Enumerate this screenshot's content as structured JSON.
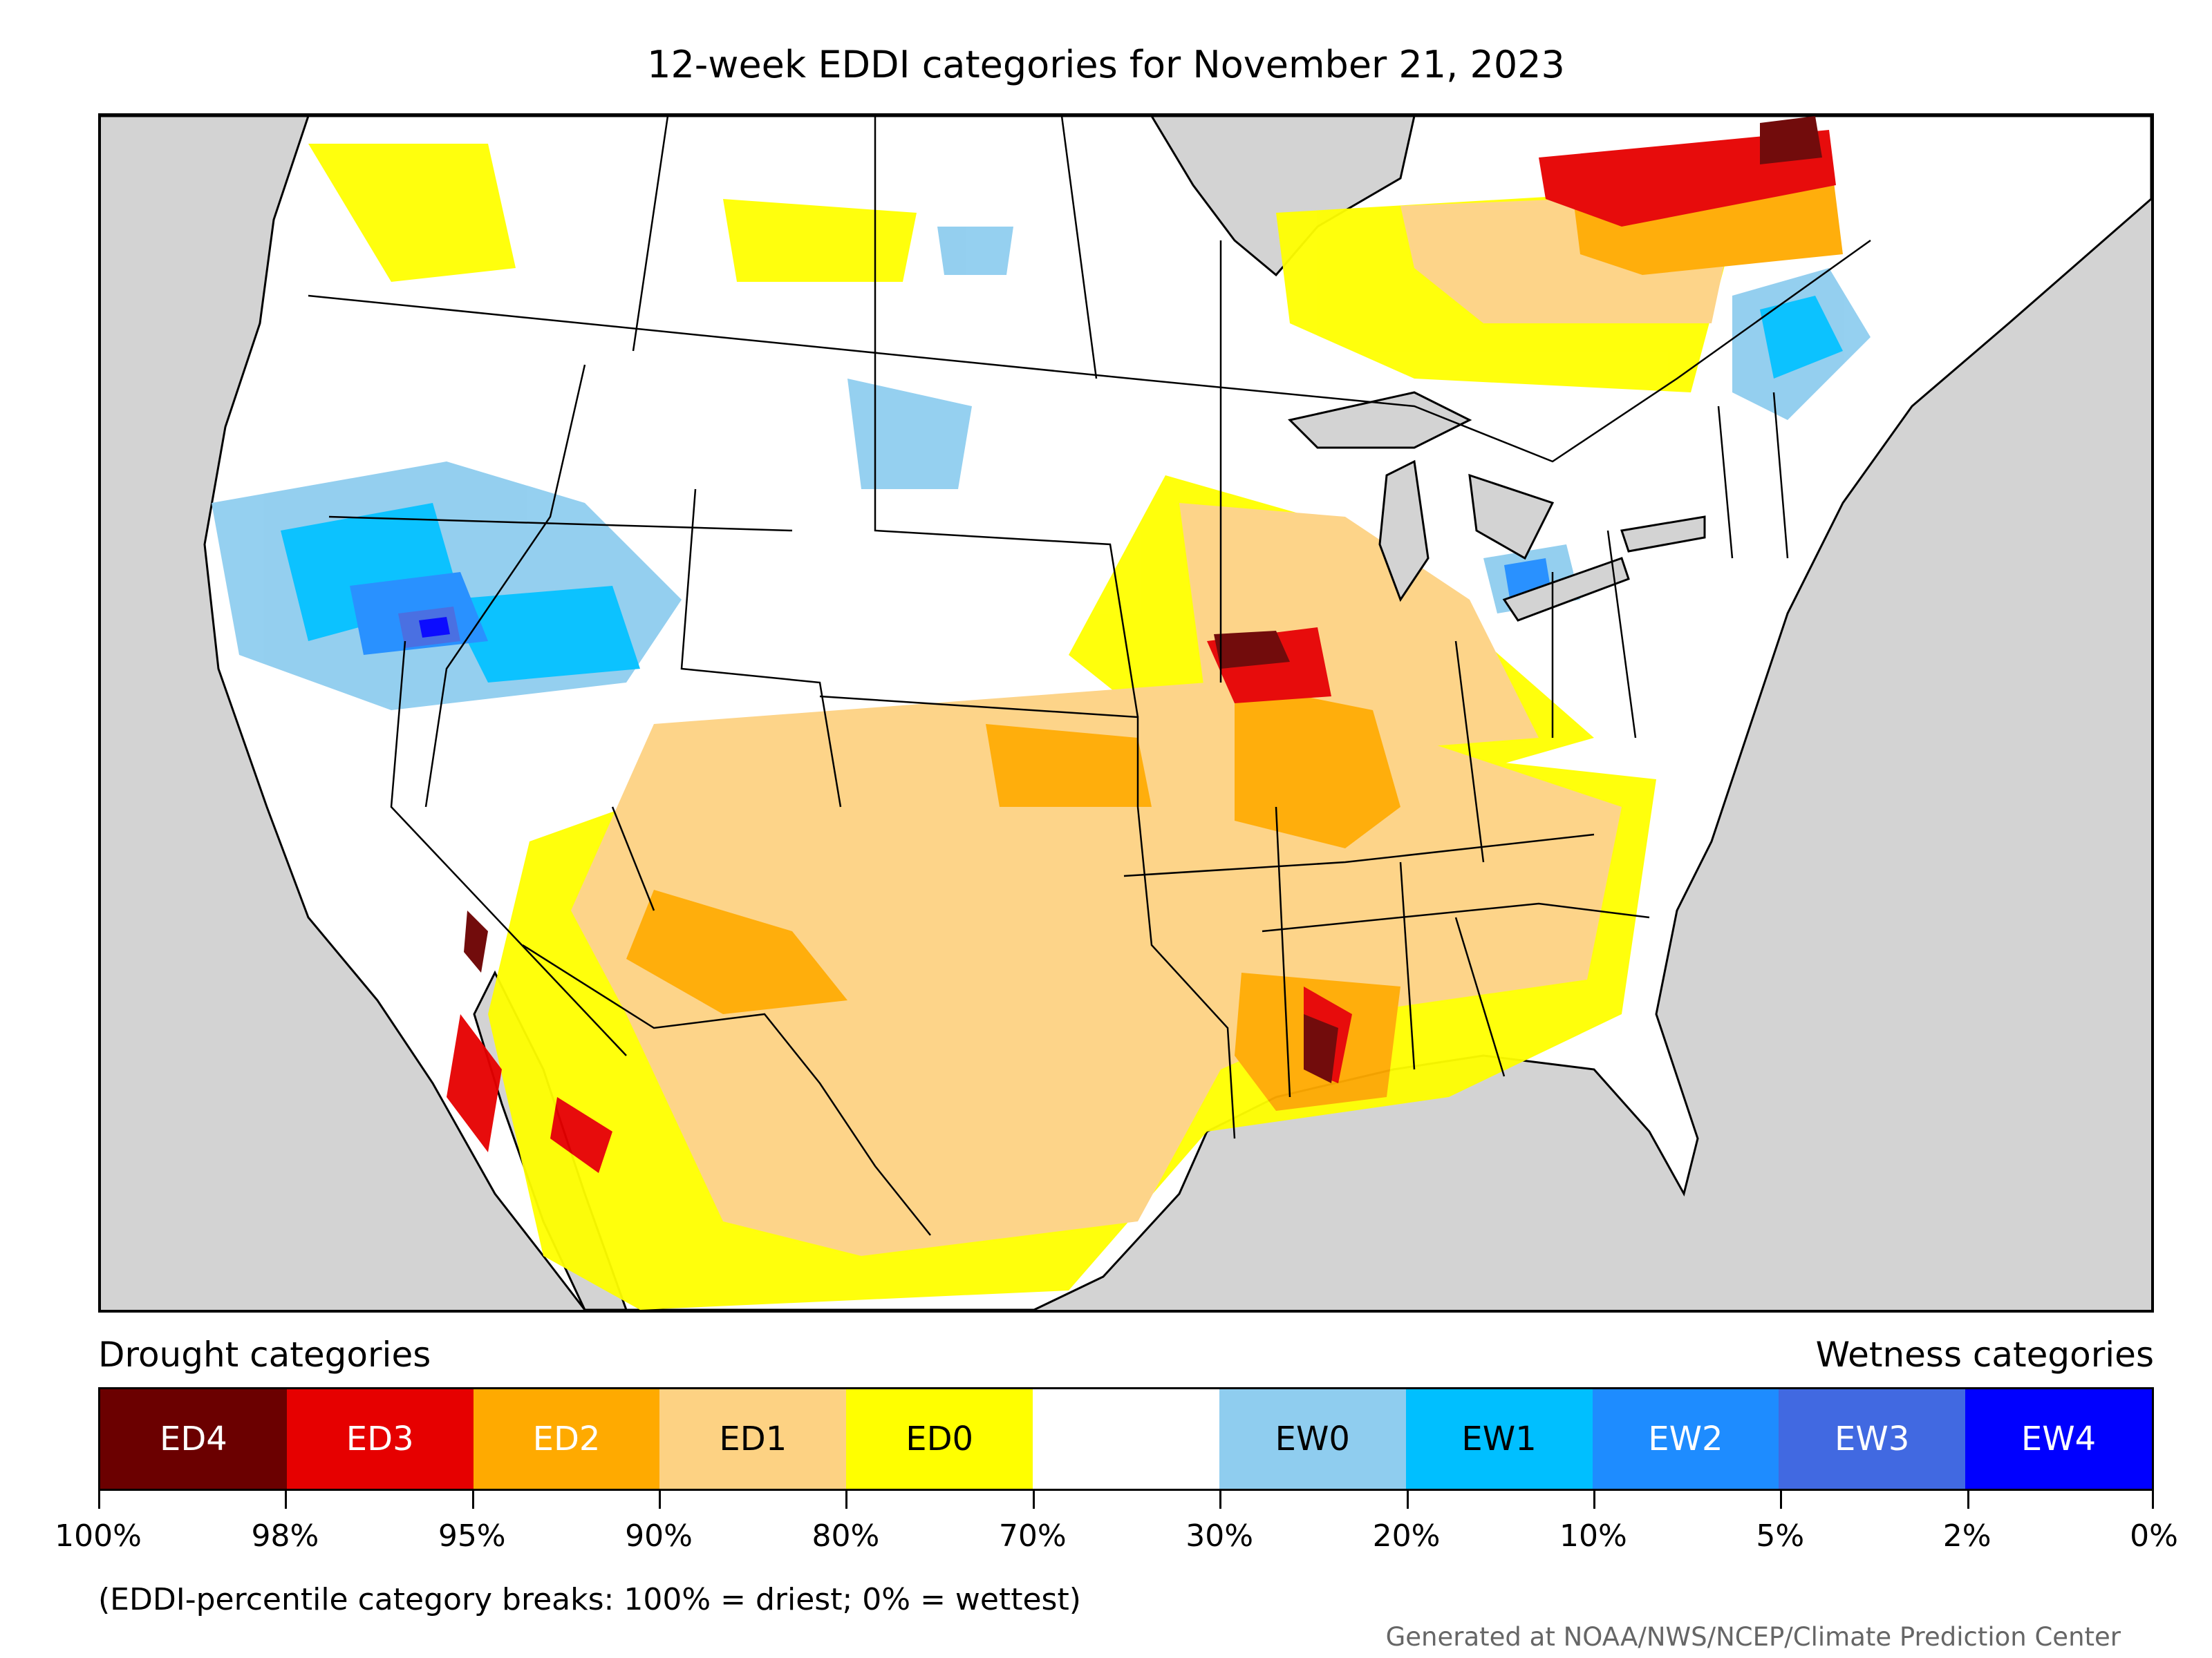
{
  "title": "12-week EDDI categories for November 21, 2023",
  "legend": {
    "drought_heading": "Drought categories",
    "wetness_heading": "Wetness categories",
    "categories": [
      {
        "label": "ED4",
        "color": "#6b0000",
        "text_color": "#ffffff"
      },
      {
        "label": "ED3",
        "color": "#e60000",
        "text_color": "#ffffff"
      },
      {
        "label": "ED2",
        "color": "#ffaa00",
        "text_color": "#ffffff"
      },
      {
        "label": "ED1",
        "color": "#fdd283",
        "text_color": "#000000"
      },
      {
        "label": "ED0",
        "color": "#ffff00",
        "text_color": "#000000"
      },
      {
        "label": "",
        "color": "#ffffff",
        "text_color": "#000000"
      },
      {
        "label": "EW0",
        "color": "#8fcdef",
        "text_color": "#000000"
      },
      {
        "label": "EW1",
        "color": "#00bfff",
        "text_color": "#000000"
      },
      {
        "label": "EW2",
        "color": "#1e8cff",
        "text_color": "#ffffff"
      },
      {
        "label": "EW3",
        "color": "#4169e1",
        "text_color": "#ffffff"
      },
      {
        "label": "EW4",
        "color": "#0000ff",
        "text_color": "#ffffff"
      }
    ],
    "ticks": [
      "100%",
      "98%",
      "95%",
      "90%",
      "80%",
      "70%",
      "30%",
      "20%",
      "10%",
      "5%",
      "2%",
      "0%"
    ]
  },
  "note": "(EDDI-percentile category breaks: 100% = driest; 0% = wettest)",
  "credit": "Generated at NOAA/NWS/NCEP/Climate Prediction Center",
  "map": {
    "background_color": "#d3d3d3",
    "land_color": "#ffffff"
  }
}
